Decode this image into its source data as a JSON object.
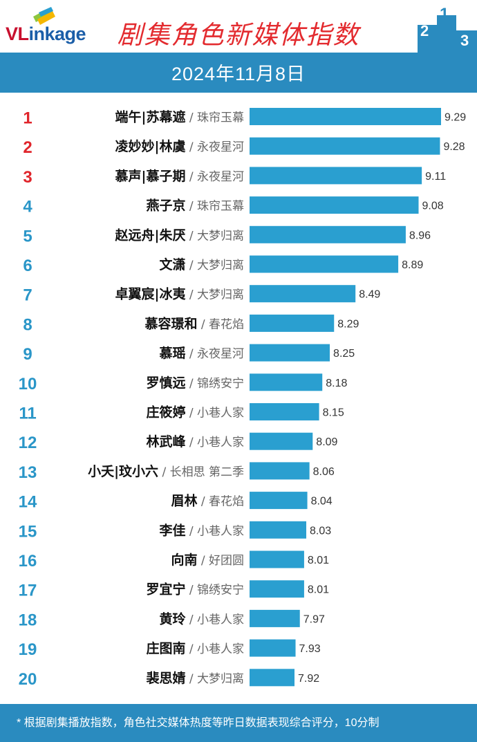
{
  "header": {
    "logo_text_red": "VL",
    "logo_text_blue": "inkage",
    "title": "剧集角色新媒体指数",
    "podium_labels": [
      "2",
      "1",
      "3"
    ]
  },
  "date_banner": "2024年11月8日",
  "footer_note": "* 根据剧集播放指数，角色社交媒体热度等昨日数据表现综合评分，10分制",
  "colors": {
    "bar": "#2a9fd0",
    "banner": "#2a8bbf",
    "rank_top3": "#e0252b",
    "rank_other": "#2a96c8",
    "title": "#e32b2f"
  },
  "chart_data": {
    "type": "bar",
    "orientation": "horizontal",
    "xlim": [
      7.0,
      9.5
    ],
    "categories": [
      {
        "rank": "1",
        "role": "端午|苏幕遮",
        "show": "珠帘玉幕"
      },
      {
        "rank": "2",
        "role": "凌妙妙|林虞",
        "show": "永夜星河"
      },
      {
        "rank": "3",
        "role": "慕声|慕子期",
        "show": "永夜星河"
      },
      {
        "rank": "4",
        "role": "燕子京",
        "show": "珠帘玉幕"
      },
      {
        "rank": "5",
        "role": "赵远舟|朱厌",
        "show": "大梦归离"
      },
      {
        "rank": "6",
        "role": "文潇",
        "show": "大梦归离"
      },
      {
        "rank": "7",
        "role": "卓翼宸|冰夷",
        "show": "大梦归离"
      },
      {
        "rank": "8",
        "role": "慕容璟和",
        "show": "春花焰"
      },
      {
        "rank": "9",
        "role": "慕瑶",
        "show": "永夜星河"
      },
      {
        "rank": "10",
        "role": "罗慎远",
        "show": "锦绣安宁"
      },
      {
        "rank": "11",
        "role": "庄筱婷",
        "show": "小巷人家"
      },
      {
        "rank": "12",
        "role": "林武峰",
        "show": "小巷人家"
      },
      {
        "rank": "13",
        "role": "小夭|玟小六",
        "show": "长相思 第二季"
      },
      {
        "rank": "14",
        "role": "眉林",
        "show": "春花焰"
      },
      {
        "rank": "15",
        "role": "李佳",
        "show": "小巷人家"
      },
      {
        "rank": "16",
        "role": "向南",
        "show": "好团圆"
      },
      {
        "rank": "17",
        "role": "罗宜宁",
        "show": "锦绣安宁"
      },
      {
        "rank": "18",
        "role": "黄玲",
        "show": "小巷人家"
      },
      {
        "rank": "19",
        "role": "庄图南",
        "show": "小巷人家"
      },
      {
        "rank": "20",
        "role": "裴思婧",
        "show": "大梦归离"
      }
    ],
    "values": [
      9.29,
      9.28,
      9.11,
      9.08,
      8.96,
      8.89,
      8.49,
      8.29,
      8.25,
      8.18,
      8.15,
      8.09,
      8.06,
      8.04,
      8.03,
      8.01,
      8.01,
      7.97,
      7.93,
      7.92
    ]
  }
}
